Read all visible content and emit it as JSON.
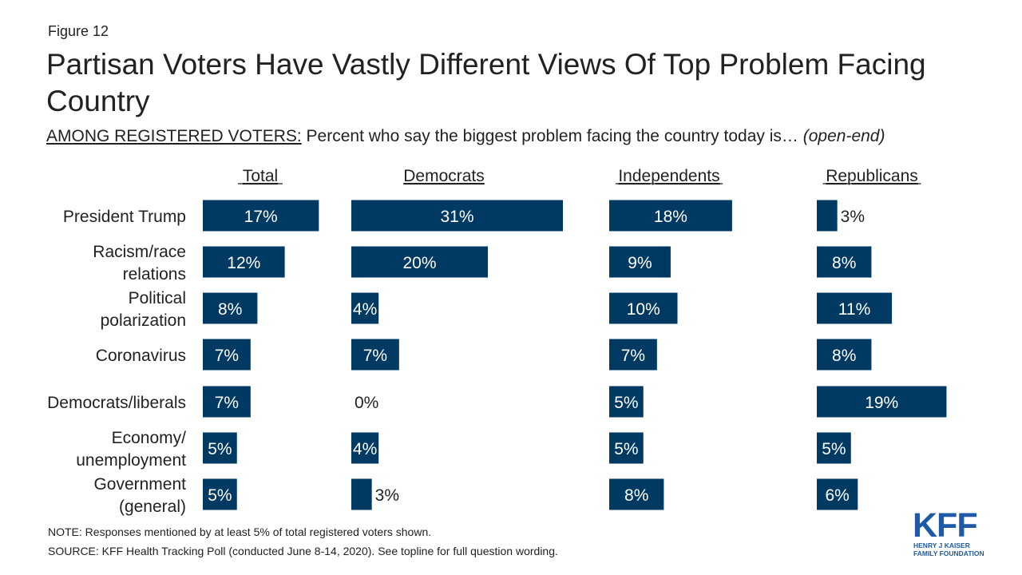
{
  "figure_label": "Figure 12",
  "title": "Partisan Voters Have Vastly Different Views Of Top Problem Facing Country",
  "subtitle": {
    "underlined": "AMONG REGISTERED VOTERS:",
    "text": " Percent who say the biggest problem facing the country today is… ",
    "italic": "(open-end)"
  },
  "colors": {
    "bar": "#003a63",
    "text_on_bar": "#ffffff",
    "text": "#222222",
    "logo": "#1f5aa6"
  },
  "chart_data": {
    "type": "bar",
    "orientation": "horizontal",
    "categories": [
      [
        "President Trump"
      ],
      [
        "Racism/race",
        "relations"
      ],
      [
        "Political",
        "polarization"
      ],
      [
        "Coronavirus"
      ],
      [
        "Democrats/liberals"
      ],
      [
        "Economy/",
        "unemployment"
      ],
      [
        "Government",
        "(general)"
      ]
    ],
    "series": [
      {
        "name": "Total",
        "values": [
          17,
          12,
          8,
          7,
          7,
          5,
          5
        ],
        "labels": [
          "17%",
          "12%",
          "8%",
          "7%",
          "7%",
          "5%",
          "5%"
        ]
      },
      {
        "name": "Democrats",
        "values": [
          31,
          20,
          4,
          7,
          0,
          4,
          3
        ],
        "labels": [
          "31%",
          "20%",
          "4%",
          "7%",
          "0%",
          "4%",
          "3%"
        ]
      },
      {
        "name": "Independents",
        "values": [
          18,
          9,
          10,
          7,
          5,
          5,
          8
        ],
        "labels": [
          "18%",
          "9%",
          "10%",
          "7%",
          "5%",
          "5%",
          "8%"
        ]
      },
      {
        "name": "Republicans",
        "values": [
          3,
          8,
          11,
          8,
          19,
          5,
          6
        ],
        "labels": [
          "3%",
          "8%",
          "11%",
          "8%",
          "19%",
          "5%",
          "6%"
        ]
      }
    ],
    "unit": "%"
  },
  "footnotes": {
    "note": "NOTE: Responses mentioned by at least 5% of total registered voters shown.",
    "source": "SOURCE: KFF Health Tracking Poll (conducted June 8-14, 2020). See topline for full question wording."
  },
  "logo": {
    "wordmark": "KFF",
    "line1": "HENRY J KAISER",
    "line2": "FAMILY FOUNDATION"
  }
}
